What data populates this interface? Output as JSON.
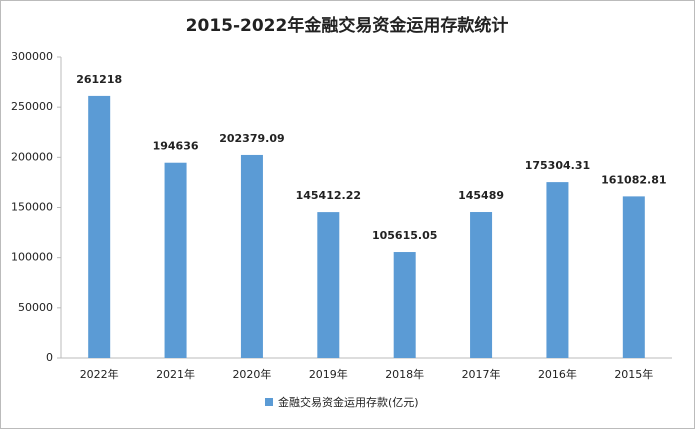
{
  "chart_data": {
    "type": "bar",
    "title": "2015-2022年金融交易资金运用存款统计",
    "categories": [
      "2022年",
      "2021年",
      "2020年",
      "2019年",
      "2018年",
      "2017年",
      "2016年",
      "2015年"
    ],
    "series": [
      {
        "name": "金融交易资金运用存款(亿元)",
        "color": "#5b9bd5",
        "values": [
          261218,
          194636,
          202379.09,
          145412.22,
          105615.05,
          145489,
          175304.31,
          161082.81
        ]
      }
    ],
    "ylim": [
      0,
      300000
    ],
    "yticks": [
      0,
      50000,
      100000,
      150000,
      200000,
      250000,
      300000
    ],
    "grid": false,
    "legend": "bottom"
  }
}
